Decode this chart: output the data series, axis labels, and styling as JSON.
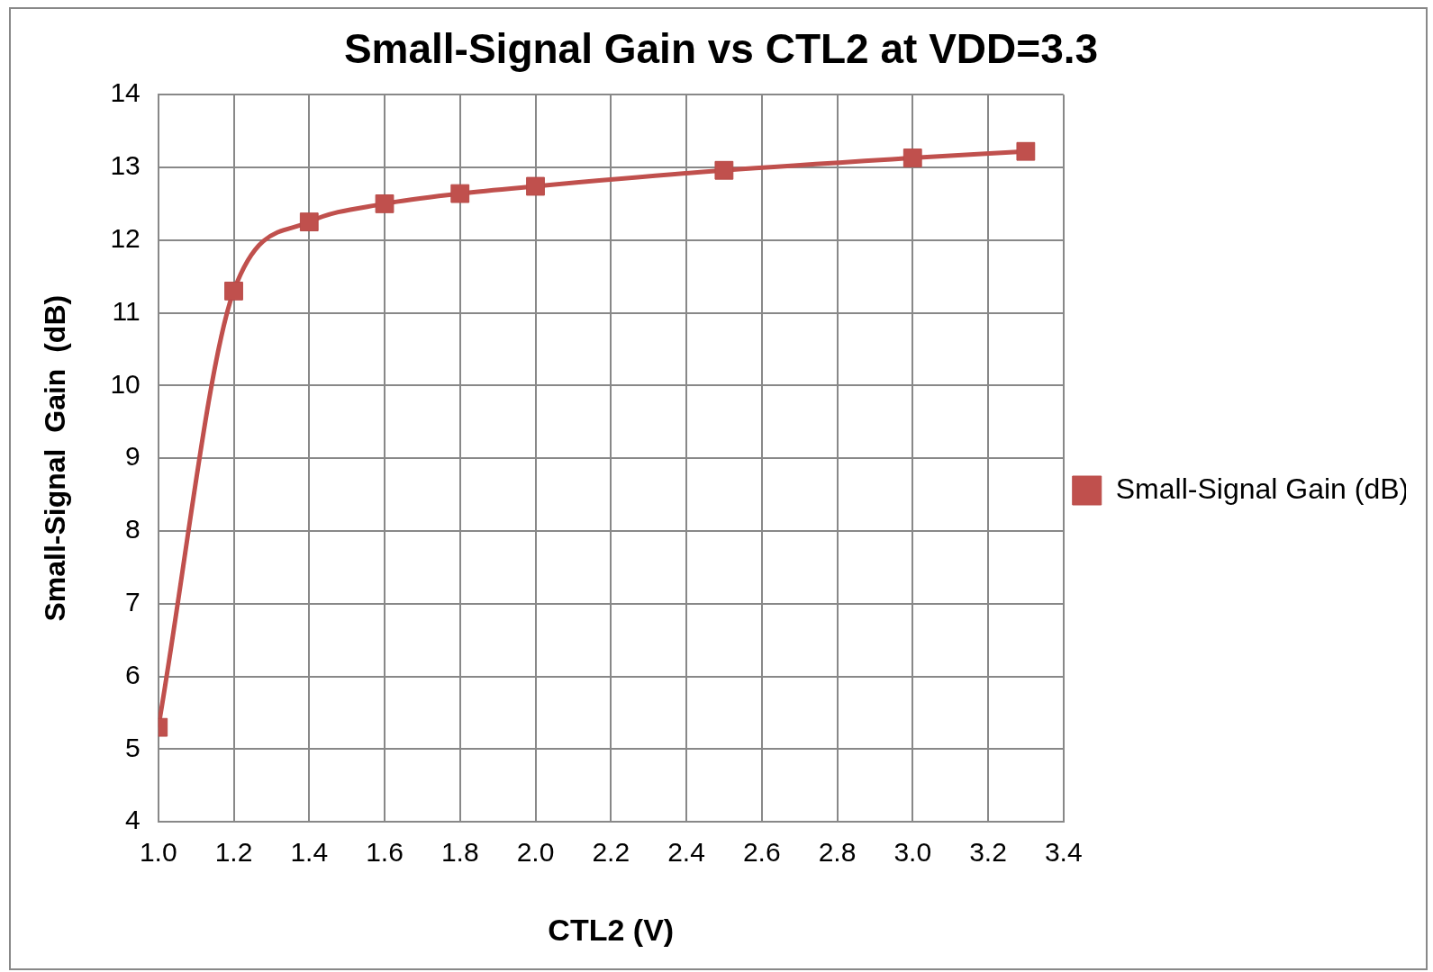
{
  "chart_data": {
    "type": "line",
    "title": "Small-Signal Gain vs CTL2 at VDD=3.3",
    "xlabel": "CTL2 (V)",
    "ylabel": "Small-Signal  Gain  (dB)",
    "x": [
      1.0,
      1.2,
      1.4,
      1.6,
      1.8,
      2.0,
      2.5,
      3.0,
      3.3
    ],
    "series": [
      {
        "name": "Small-Signal Gain (dB)",
        "color": "#c0504d",
        "values": [
          5.3,
          11.3,
          12.25,
          12.5,
          12.64,
          12.74,
          12.96,
          13.13,
          13.22
        ]
      }
    ],
    "xlim": [
      1.0,
      3.4
    ],
    "xticks": [
      {
        "value": 1.0,
        "label": "1.0"
      },
      {
        "value": 1.2,
        "label": "1.2"
      },
      {
        "value": 1.4,
        "label": "1.4"
      },
      {
        "value": 1.6,
        "label": "1.6"
      },
      {
        "value": 1.8,
        "label": "1.8"
      },
      {
        "value": 2.0,
        "label": "2.0"
      },
      {
        "value": 2.2,
        "label": "2.2"
      },
      {
        "value": 2.4,
        "label": "2.4"
      },
      {
        "value": 2.6,
        "label": "2.6"
      },
      {
        "value": 2.8,
        "label": "2.8"
      },
      {
        "value": 3.0,
        "label": "3.0"
      },
      {
        "value": 3.2,
        "label": "3.2"
      },
      {
        "value": 3.4,
        "label": "3.4"
      }
    ],
    "ylim": [
      4,
      14
    ],
    "yticks": [
      4,
      5,
      6,
      7,
      8,
      9,
      10,
      11,
      12,
      13,
      14
    ],
    "grid": true,
    "legend": "right",
    "marker": "square",
    "line_style": "solid"
  }
}
